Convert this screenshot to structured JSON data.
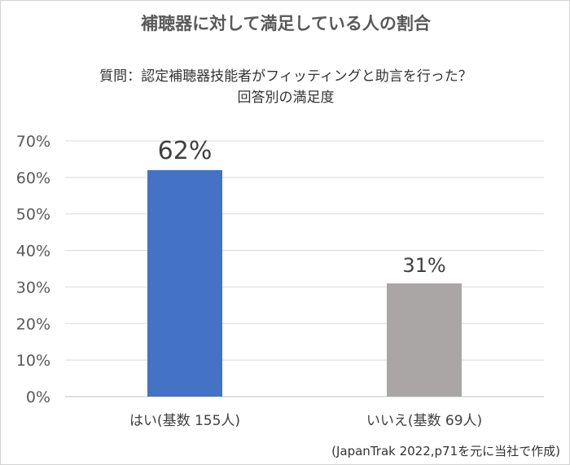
{
  "chart_data": {
    "type": "bar",
    "title": "補聴器に対して満足している人の割合",
    "subtitle_lines": [
      "質問：認定補聴器技能者がフィッティングと助言を行った？",
      "回答別の満足度"
    ],
    "categories": [
      "はい(基数 155人)",
      "いいえ(基数 69人)"
    ],
    "values": [
      62,
      31
    ],
    "data_labels": [
      "62%",
      "31%"
    ],
    "y_ticks": [
      "0%",
      "10%",
      "20%",
      "30%",
      "40%",
      "50%",
      "60%",
      "70%"
    ],
    "ylim": [
      0,
      70
    ],
    "grid": true,
    "bar_colors": [
      "#4472c4",
      "#aaa6a6"
    ],
    "source_note": "(JapanTrak 2022,p71を元に当社で作成)"
  }
}
